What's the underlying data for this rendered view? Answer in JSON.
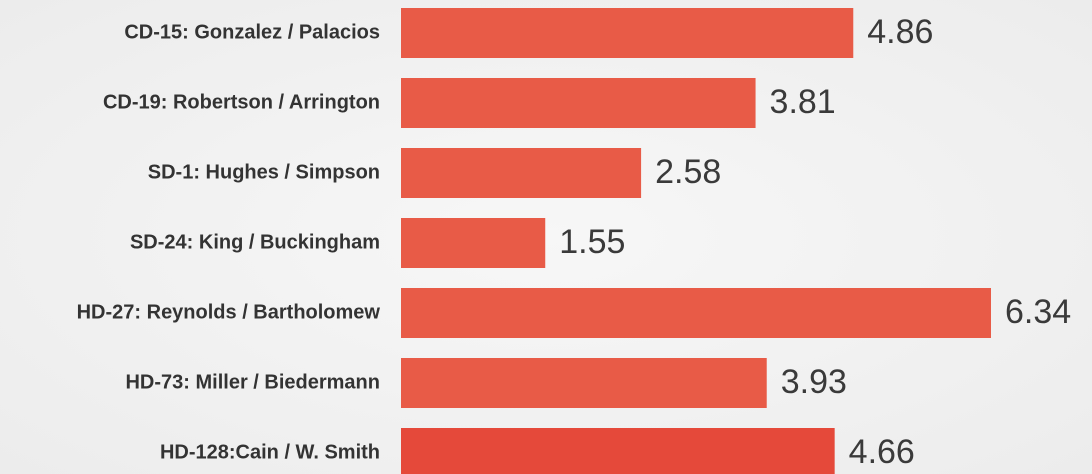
{
  "chart_data": {
    "type": "barh",
    "categories": [
      "CD-15: Gonzalez / Palacios",
      "CD-19: Robertson / Arrington",
      "SD-1: Hughes / Simpson",
      "SD-24: King / Buckingham",
      "HD-27: Reynolds / Bartholomew",
      "HD-73: Miller / Biedermann",
      "HD-128:Cain / W. Smith"
    ],
    "values": [
      4.86,
      3.81,
      2.58,
      1.55,
      6.34,
      3.93,
      4.66
    ],
    "colors": [
      "#e85b47",
      "#e85b47",
      "#e85b47",
      "#e85b47",
      "#e85b47",
      "#e85b47",
      "#e5493a"
    ]
  }
}
